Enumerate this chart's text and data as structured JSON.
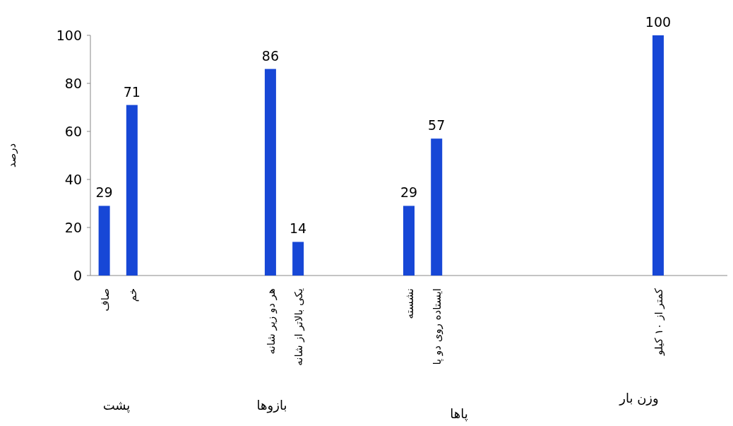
{
  "chart_data": {
    "type": "bar",
    "ylabel": "درصد",
    "categories": [
      "صاف",
      "خم",
      null,
      null,
      null,
      null,
      "هر دو زیر شانه",
      "یکی بالاتر از شانه",
      null,
      null,
      null,
      "نشسته",
      "ایستاده روی دو پا",
      null,
      null,
      null,
      null,
      null,
      null,
      null,
      "کمتر از ۱۰ کیلو",
      null,
      null
    ],
    "values": [
      29,
      71,
      null,
      null,
      null,
      null,
      86,
      14,
      null,
      null,
      null,
      29,
      57,
      null,
      null,
      null,
      null,
      null,
      null,
      null,
      100,
      null,
      null
    ],
    "color": "#1747d6",
    "data_labels": true,
    "ylim": [
      0,
      100
    ],
    "yticks": [
      0,
      20,
      40,
      60,
      80,
      100
    ],
    "grid": false,
    "annotations": [
      "پشت",
      "بازوها",
      "پاها",
      "وزن بار"
    ]
  }
}
